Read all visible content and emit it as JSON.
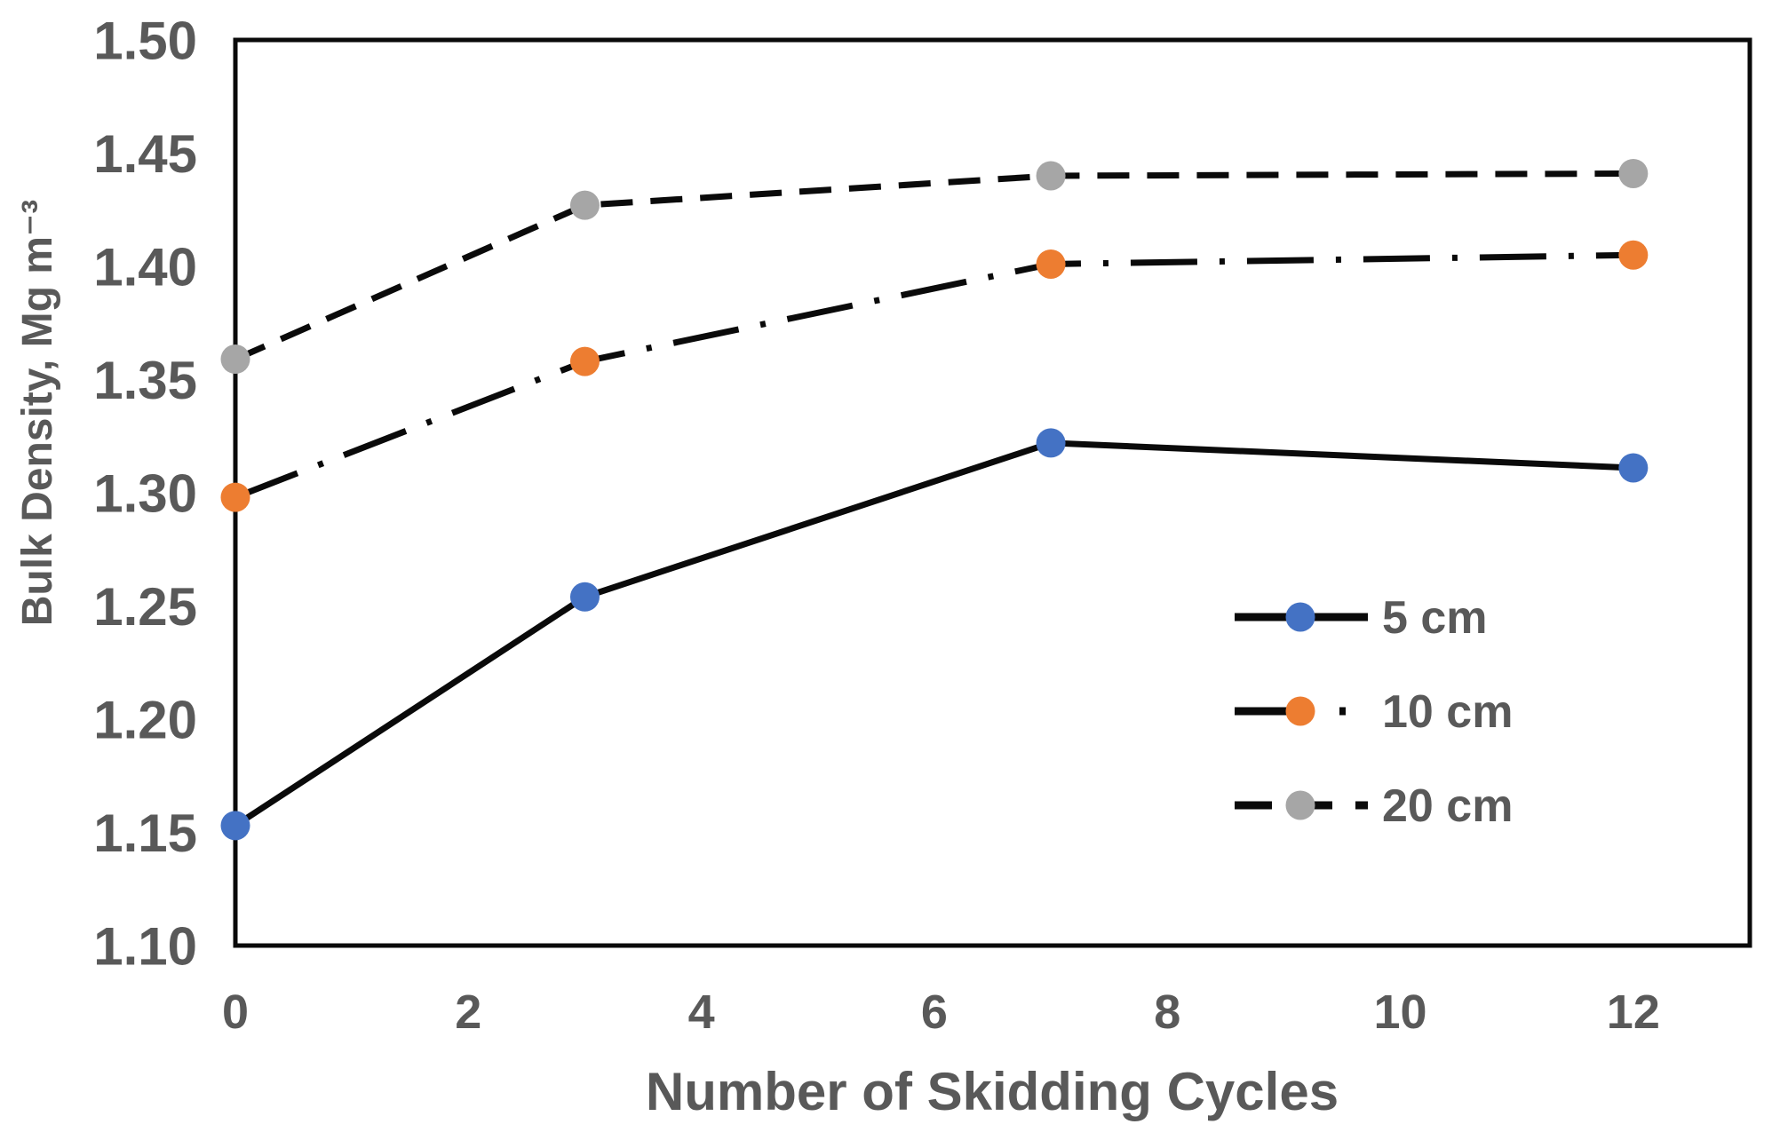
{
  "chart_data": {
    "type": "line",
    "title": "",
    "xlabel": "Number of Skidding Cycles",
    "ylabel": "Bulk Density, Mg m⁻³",
    "xlim": [
      0,
      13
    ],
    "ylim": [
      1.1,
      1.5
    ],
    "xticks": [
      "0",
      "2",
      "4",
      "6",
      "8",
      "10",
      "12"
    ],
    "yticks": [
      "1.10",
      "1.15",
      "1.20",
      "1.25",
      "1.30",
      "1.35",
      "1.40",
      "1.45",
      "1.50"
    ],
    "grid": false,
    "legend_position": "inside-right",
    "x": [
      0,
      3,
      7,
      12
    ],
    "series": [
      {
        "name": "5 cm",
        "marker_color": "#4472C4",
        "line_style": "solid",
        "values": [
          1.153,
          1.254,
          1.322,
          1.311
        ]
      },
      {
        "name": "10 cm",
        "marker_color": "#ED7D31",
        "line_style": "dash-dot",
        "values": [
          1.298,
          1.358,
          1.401,
          1.405
        ]
      },
      {
        "name": "20 cm",
        "marker_color": "#A6A6A6",
        "line_style": "dashed",
        "values": [
          1.359,
          1.427,
          1.44,
          1.441
        ]
      }
    ],
    "line_color": "#0a0a0a",
    "text_color": "#595959",
    "background_color": "#ffffff"
  }
}
